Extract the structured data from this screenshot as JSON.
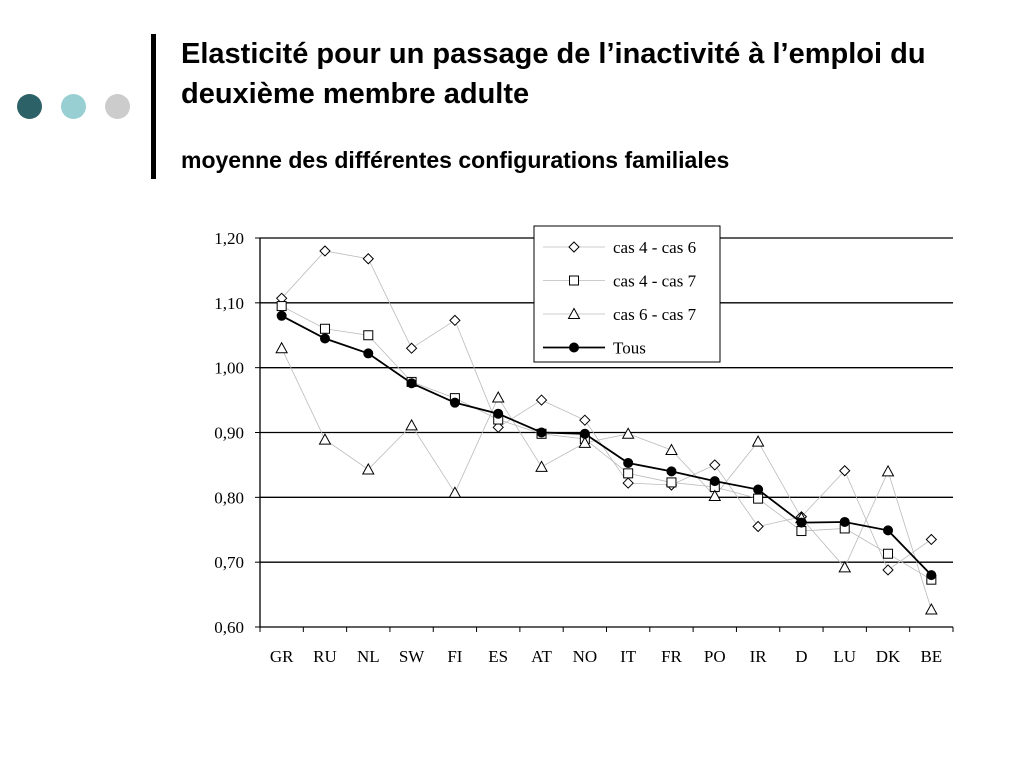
{
  "slide": {
    "title": "Elasticité pour un passage de l’inactivité à l’emploi du deuxième membre adulte",
    "subtitle": "moyenne des différentes configurations familiales",
    "dot_colors": [
      "#2d6168",
      "#98cfd2",
      "#cccccc"
    ]
  },
  "chart_data": {
    "type": "line",
    "title": "",
    "xlabel": "",
    "ylabel": "",
    "ylim": [
      0.6,
      1.2
    ],
    "yticks": [
      "0,60",
      "0,70",
      "0,80",
      "0,90",
      "1,00",
      "1,10",
      "1,20"
    ],
    "grid": true,
    "legend_position": "top-center",
    "categories": [
      "GR",
      "RU",
      "NL",
      "SW",
      "FI",
      "ES",
      "AT",
      "NO",
      "IT",
      "FR",
      "PO",
      "IR",
      "D",
      "LU",
      "DK",
      "BE"
    ],
    "series": [
      {
        "name": "cas 4 - cas 6",
        "marker": "diamond",
        "line_color": "#bbbbbb",
        "values": [
          1.107,
          1.18,
          1.168,
          1.03,
          1.073,
          0.908,
          0.95,
          0.919,
          0.822,
          0.819,
          0.85,
          0.755,
          0.77,
          0.841,
          0.688,
          0.735
        ]
      },
      {
        "name": "cas 4 - cas 7",
        "marker": "square",
        "line_color": "#bbbbbb",
        "values": [
          1.095,
          1.06,
          1.05,
          0.978,
          0.953,
          0.92,
          0.898,
          0.89,
          0.837,
          0.823,
          0.816,
          0.798,
          0.748,
          0.752,
          0.713,
          0.673
        ]
      },
      {
        "name": "cas 6 - cas 7",
        "marker": "triangle",
        "line_color": "#bbbbbb",
        "values": [
          1.03,
          0.889,
          0.843,
          0.911,
          0.807,
          0.954,
          0.847,
          0.884,
          0.898,
          0.873,
          0.802,
          0.886,
          0.768,
          0.692,
          0.84,
          0.627
        ]
      },
      {
        "name": "Tous",
        "marker": "filled-circle",
        "line_color": "#000000",
        "values": [
          1.08,
          1.045,
          1.022,
          0.976,
          0.946,
          0.929,
          0.9,
          0.898,
          0.853,
          0.84,
          0.825,
          0.812,
          0.761,
          0.762,
          0.749,
          0.68
        ]
      }
    ]
  }
}
